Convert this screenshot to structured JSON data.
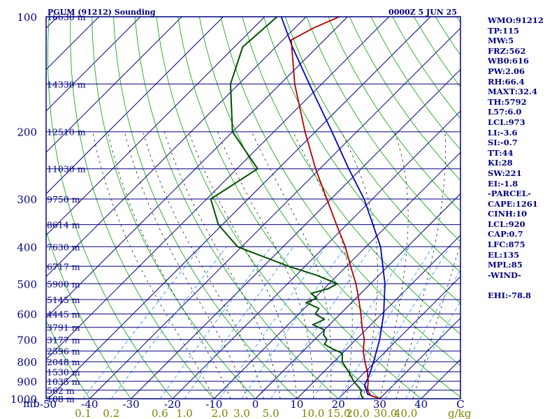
{
  "header": {
    "title": "PGUM (91212) Sounding",
    "time": "0000Z  5 JUN 25"
  },
  "sidebar_stats": [
    "WMO:91212",
    "TP:115",
    "MW:5",
    "FRZ:562",
    "WB0:616",
    "PW:2.06",
    "RH:66.4",
    "MAXT:32.4",
    "TH:5792",
    "L57:6.0",
    "LCL:973",
    "LI:-3.6",
    "SI:-0.7",
    "TT:44",
    "KI:28",
    "SW:221",
    "EI:-1.8",
    "-PARCEL-",
    "CAPE:1261",
    "CINH:10",
    "LCL:920",
    "CAP:0.7",
    "LFC:875",
    "EL:135",
    "MPL:85",
    "-WIND-"
  ],
  "sidebar_extra": "EHI:-78.8",
  "colors": {
    "frame": "#000080",
    "isobar": "#000080",
    "isotherm": "#000080",
    "dry_adiabat": "#00a000",
    "moist_adiabat": "#000000",
    "mixing_ratio": "#3399ff",
    "temperature": "#b00000",
    "dewpoint": "#005000",
    "parcel": "#0000c0",
    "mixing_ratio_labels": "#808000"
  },
  "chart_data": {
    "type": "line",
    "title": "PGUM (91212) Sounding",
    "subtitle": "0000Z  5 JUN 25",
    "x_unit_label": "C",
    "y_unit_label": "mb",
    "xlim": [
      -50,
      50
    ],
    "ylim": [
      1000,
      100
    ],
    "y_scale": "log",
    "x_ticks": [
      -50,
      -40,
      -30,
      -20,
      -10,
      0,
      10,
      20,
      30,
      40
    ],
    "x_tick_labels": [
      "-50",
      "-40",
      "-30",
      "-20",
      "-10",
      "0",
      "10",
      "20",
      "30",
      "40"
    ],
    "pressure_levels": [
      {
        "p": 100,
        "label": "100",
        "height": "16630 m"
      },
      {
        "p": 150,
        "label": "",
        "height": "14330 m"
      },
      {
        "p": 200,
        "label": "200",
        "height": "12510 m"
      },
      {
        "p": 250,
        "label": "",
        "height": "11030 m"
      },
      {
        "p": 300,
        "label": "300",
        "height": "9750 m"
      },
      {
        "p": 350,
        "label": "",
        "height": "8614 m"
      },
      {
        "p": 400,
        "label": "400",
        "height": "7630 m"
      },
      {
        "p": 450,
        "label": "",
        "height": "6717 m"
      },
      {
        "p": 500,
        "label": "500",
        "height": "5900 m"
      },
      {
        "p": 550,
        "label": "",
        "height": "5145 m"
      },
      {
        "p": 600,
        "label": "600",
        "height": "4445 m"
      },
      {
        "p": 650,
        "label": "",
        "height": "3791 m"
      },
      {
        "p": 700,
        "label": "700",
        "height": "3177 m"
      },
      {
        "p": 750,
        "label": "",
        "height": "2596 m"
      },
      {
        "p": 800,
        "label": "800",
        "height": "2048 m"
      },
      {
        "p": 850,
        "label": "",
        "height": "1530 m"
      },
      {
        "p": 900,
        "label": "900",
        "height": "1035 m"
      },
      {
        "p": 950,
        "label": "",
        "height": "562 m"
      },
      {
        "p": 1000,
        "label": "1000",
        "height": "108 m"
      }
    ],
    "mixing_ratio_lines": [
      {
        "w": 0.1,
        "label": "0.1"
      },
      {
        "w": 0.2,
        "label": "0.2"
      },
      {
        "w": 0.6,
        "label": "0.6"
      },
      {
        "w": 1.0,
        "label": "1.0"
      },
      {
        "w": 2.0,
        "label": "2.0"
      },
      {
        "w": 3.0,
        "label": "3.0"
      },
      {
        "w": 5.0,
        "label": "5.0"
      },
      {
        "w": 10.0,
        "label": "10.0"
      },
      {
        "w": 15.0,
        "label": "15.0"
      },
      {
        "w": 20.0,
        "label": "20.0"
      },
      {
        "w": 30.0,
        "label": "30.0"
      },
      {
        "w": 40.0,
        "label": "40.0"
      }
    ],
    "mixing_ratio_unit": "g/kg",
    "series": [
      {
        "key": "temperature",
        "points": [
          [
            1000,
            30.0
          ],
          [
            980,
            27.0
          ],
          [
            950,
            25.0
          ],
          [
            900,
            23.0
          ],
          [
            850,
            20.5
          ],
          [
            800,
            17.5
          ],
          [
            750,
            14.5
          ],
          [
            700,
            12.0
          ],
          [
            650,
            8.5
          ],
          [
            600,
            5.0
          ],
          [
            550,
            1.0
          ],
          [
            500,
            -3.5
          ],
          [
            450,
            -9.0
          ],
          [
            400,
            -15.0
          ],
          [
            350,
            -22.5
          ],
          [
            300,
            -31.0
          ],
          [
            250,
            -41.0
          ],
          [
            200,
            -52.5
          ],
          [
            150,
            -66.5
          ],
          [
            115,
            -78.0
          ],
          [
            107,
            -75.5
          ],
          [
            100,
            -72.0
          ]
        ]
      },
      {
        "key": "dewpoint",
        "points": [
          [
            1000,
            26.0
          ],
          [
            970,
            24.2
          ],
          [
            950,
            23.5
          ],
          [
            900,
            19.5
          ],
          [
            850,
            16.0
          ],
          [
            800,
            12.0
          ],
          [
            760,
            10.0
          ],
          [
            740,
            6.5
          ],
          [
            720,
            3.5
          ],
          [
            700,
            3.0
          ],
          [
            680,
            1.0
          ],
          [
            660,
            0.0
          ],
          [
            640,
            -4.0
          ],
          [
            620,
            -2.5
          ],
          [
            600,
            -6.0
          ],
          [
            580,
            -6.5
          ],
          [
            560,
            -11.0
          ],
          [
            545,
            -9.5
          ],
          [
            530,
            -12.0
          ],
          [
            515,
            -9.0
          ],
          [
            500,
            -8.0
          ],
          [
            475,
            -15.0
          ],
          [
            450,
            -24.0
          ],
          [
            420,
            -34.0
          ],
          [
            400,
            -41.0
          ],
          [
            350,
            -51.0
          ],
          [
            300,
            -59.0
          ],
          [
            250,
            -55.0
          ],
          [
            200,
            -70.0
          ],
          [
            150,
            -82.0
          ],
          [
            120,
            -88.0
          ],
          [
            100,
            -87.0
          ]
        ]
      },
      {
        "key": "parcel",
        "points": [
          [
            1000,
            30.0
          ],
          [
            973,
            26.0
          ],
          [
            920,
            23.0
          ],
          [
            875,
            22.0
          ],
          [
            800,
            19.6
          ],
          [
            700,
            15.7
          ],
          [
            600,
            10.5
          ],
          [
            500,
            3.5
          ],
          [
            400,
            -6.5
          ],
          [
            300,
            -22.0
          ],
          [
            250,
            -33.0
          ],
          [
            200,
            -46.0
          ],
          [
            150,
            -63.0
          ],
          [
            120,
            -76.0
          ],
          [
            100,
            -86.0
          ]
        ]
      }
    ]
  }
}
